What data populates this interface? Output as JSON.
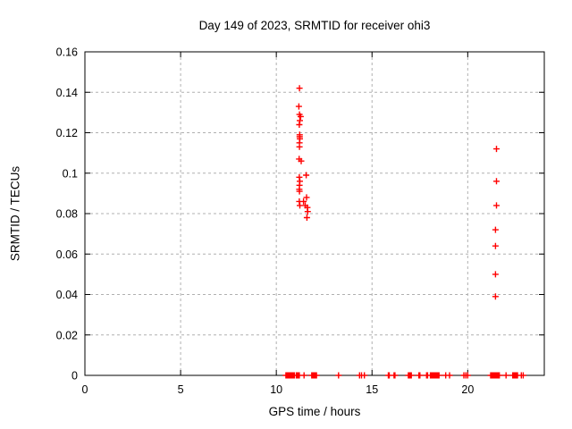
{
  "chart_data": {
    "type": "scatter",
    "title": "Day 149 of 2023, SRMTID for receiver ohi3",
    "xlabel": "GPS time / hours",
    "ylabel": "SRMTID / TECUs",
    "xlim": [
      0,
      24
    ],
    "ylim": [
      0,
      0.16
    ],
    "xtick_values": [
      0,
      5,
      10,
      15,
      20
    ],
    "xtick_labels": [
      "0",
      "5",
      "10",
      "15",
      "20"
    ],
    "ytick_values": [
      0,
      0.02,
      0.04,
      0.06,
      0.08,
      0.1,
      0.12,
      0.14,
      0.16
    ],
    "ytick_labels": [
      "0",
      "0.02",
      "0.04",
      "0.06",
      "0.08",
      "0.1",
      "0.12",
      "0.14",
      "0.16"
    ],
    "grid": true,
    "legend": "none",
    "marker": "plus",
    "marker_color": "#ff0000",
    "grid_color": "#b0b0b0",
    "axis_color": "#000000",
    "points": [
      [
        11.21,
        0.142
      ],
      [
        11.18,
        0.133
      ],
      [
        11.21,
        0.129
      ],
      [
        11.27,
        0.128
      ],
      [
        11.23,
        0.126
      ],
      [
        11.2,
        0.124
      ],
      [
        11.22,
        0.119
      ],
      [
        11.22,
        0.118
      ],
      [
        11.23,
        0.117
      ],
      [
        11.21,
        0.115
      ],
      [
        11.21,
        0.113
      ],
      [
        11.19,
        0.107
      ],
      [
        11.3,
        0.106
      ],
      [
        11.56,
        0.099
      ],
      [
        11.2,
        0.098
      ],
      [
        11.23,
        0.096
      ],
      [
        11.21,
        0.094
      ],
      [
        11.2,
        0.092
      ],
      [
        11.21,
        0.091
      ],
      [
        11.58,
        0.088
      ],
      [
        11.2,
        0.086
      ],
      [
        11.42,
        0.086
      ],
      [
        11.23,
        0.084
      ],
      [
        11.51,
        0.084
      ],
      [
        11.62,
        0.083
      ],
      [
        11.64,
        0.081
      ],
      [
        11.6,
        0.078
      ],
      [
        21.5,
        0.112
      ],
      [
        21.5,
        0.096
      ],
      [
        21.5,
        0.084
      ],
      [
        21.45,
        0.072
      ],
      [
        21.45,
        0.064
      ],
      [
        21.45,
        0.05
      ],
      [
        21.45,
        0.039
      ],
      [
        10.5,
        0
      ],
      [
        10.55,
        0
      ],
      [
        10.6,
        0
      ],
      [
        10.65,
        0
      ],
      [
        10.7,
        0
      ],
      [
        10.75,
        0
      ],
      [
        10.8,
        0
      ],
      [
        10.85,
        0
      ],
      [
        10.9,
        0
      ],
      [
        10.95,
        0
      ],
      [
        11.05,
        0
      ],
      [
        11.1,
        0
      ],
      [
        11.15,
        0
      ],
      [
        11.2,
        0
      ],
      [
        11.45,
        0
      ],
      [
        11.85,
        0
      ],
      [
        11.9,
        0
      ],
      [
        11.95,
        0
      ],
      [
        12.0,
        0
      ],
      [
        12.05,
        0
      ],
      [
        12.1,
        0
      ],
      [
        13.25,
        0
      ],
      [
        14.35,
        0
      ],
      [
        14.45,
        0
      ],
      [
        14.6,
        0
      ],
      [
        15.85,
        0
      ],
      [
        15.9,
        0
      ],
      [
        16.15,
        0
      ],
      [
        16.2,
        0
      ],
      [
        16.9,
        0
      ],
      [
        16.95,
        0
      ],
      [
        17.0,
        0
      ],
      [
        17.05,
        0
      ],
      [
        17.45,
        0
      ],
      [
        17.5,
        0
      ],
      [
        17.85,
        0
      ],
      [
        17.9,
        0
      ],
      [
        18.05,
        0
      ],
      [
        18.1,
        0
      ],
      [
        18.15,
        0
      ],
      [
        18.2,
        0
      ],
      [
        18.25,
        0
      ],
      [
        18.3,
        0
      ],
      [
        18.35,
        0
      ],
      [
        18.4,
        0
      ],
      [
        18.45,
        0
      ],
      [
        18.5,
        0
      ],
      [
        18.85,
        0
      ],
      [
        19.05,
        0
      ],
      [
        19.8,
        0
      ],
      [
        19.9,
        0
      ],
      [
        20.0,
        0
      ],
      [
        21.2,
        0
      ],
      [
        21.25,
        0
      ],
      [
        21.3,
        0
      ],
      [
        21.35,
        0
      ],
      [
        21.4,
        0
      ],
      [
        21.45,
        0
      ],
      [
        21.5,
        0
      ],
      [
        21.55,
        0
      ],
      [
        21.6,
        0
      ],
      [
        21.65,
        0
      ],
      [
        22.0,
        0
      ],
      [
        22.35,
        0
      ],
      [
        22.4,
        0
      ],
      [
        22.45,
        0
      ],
      [
        22.5,
        0
      ],
      [
        22.55,
        0
      ],
      [
        22.6,
        0
      ],
      [
        22.8,
        0
      ],
      [
        22.9,
        0
      ]
    ]
  }
}
